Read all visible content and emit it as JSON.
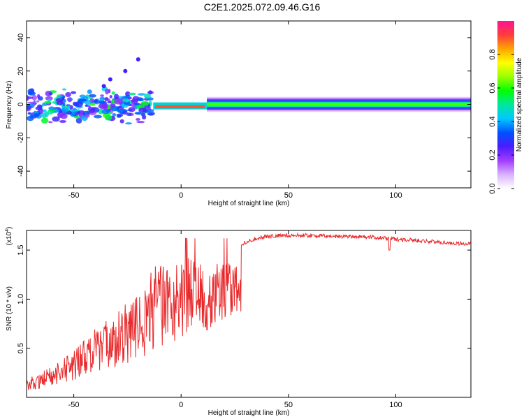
{
  "title": "C2E1.2025.072.09.46.G16",
  "chart_data": [
    {
      "type": "heatmap",
      "name": "spectrogram",
      "xlabel": "Height of straight line (km)",
      "ylabel": "Frequency (Hz)",
      "xlim": [
        -72,
        135
      ],
      "ylim": [
        -50,
        50
      ],
      "xticks": [
        -50,
        0,
        50,
        100
      ],
      "yticks": [
        -40,
        -20,
        0,
        20,
        40
      ],
      "colorbar": {
        "label": "Normalized spectral amplitude",
        "range": [
          0,
          1
        ],
        "ticks": [
          0.0,
          0.2,
          0.4,
          0.6,
          0.8
        ],
        "tick_labels": [
          "0.0",
          "0.2",
          "0.4",
          "0.6",
          "0.8"
        ],
        "colors": [
          "#ffffff",
          "#d9b3ff",
          "#a23cff",
          "#4b1cff",
          "#0050ff",
          "#00c8ff",
          "#00e6a0",
          "#00ff00",
          "#9aff00",
          "#ffff00",
          "#ffa500",
          "#ff3c3c",
          "#ff1493"
        ]
      },
      "features": [
        {
          "x_range": [
            -72,
            -15
          ],
          "freq_center": -1,
          "spread_hz": 5,
          "description_level": 0.4
        },
        {
          "x_range": [
            -13,
            12
          ],
          "freq_center": -1,
          "spread_hz": 2,
          "description_level": 0.9
        },
        {
          "x_range": [
            12,
            135
          ],
          "freq_center": 0,
          "spread_hz": 4,
          "description_level": 0.5
        }
      ]
    },
    {
      "type": "line",
      "name": "snr",
      "xlabel": "Height of straight line (km)",
      "ylabel": "SNR (10 * v/v)",
      "multiplier_label": "(x10",
      "multiplier_exp": "4",
      "xlim": [
        -72,
        135
      ],
      "ylim": [
        0,
        1.7
      ],
      "xticks": [
        -50,
        0,
        50,
        100
      ],
      "yticks": [
        0.5,
        1.0,
        1.5
      ],
      "ytick_labels": [
        "0.5",
        "1.0",
        "1.5"
      ],
      "color": "#e8292b",
      "envelope_x": [
        -72,
        -60,
        -50,
        -40,
        -30,
        -20,
        -15,
        -10,
        -5,
        0,
        5,
        10,
        15,
        20,
        25,
        30,
        35,
        40,
        50,
        60,
        70,
        80,
        90,
        95,
        100,
        110,
        120,
        135
      ],
      "envelope_y": [
        0.12,
        0.2,
        0.3,
        0.45,
        0.55,
        0.7,
        0.8,
        0.9,
        1.0,
        1.1,
        1.15,
        1.2,
        1.3,
        1.45,
        1.53,
        1.58,
        1.62,
        1.64,
        1.65,
        1.65,
        1.64,
        1.64,
        1.63,
        1.62,
        1.61,
        1.6,
        1.58,
        1.56
      ]
    }
  ]
}
